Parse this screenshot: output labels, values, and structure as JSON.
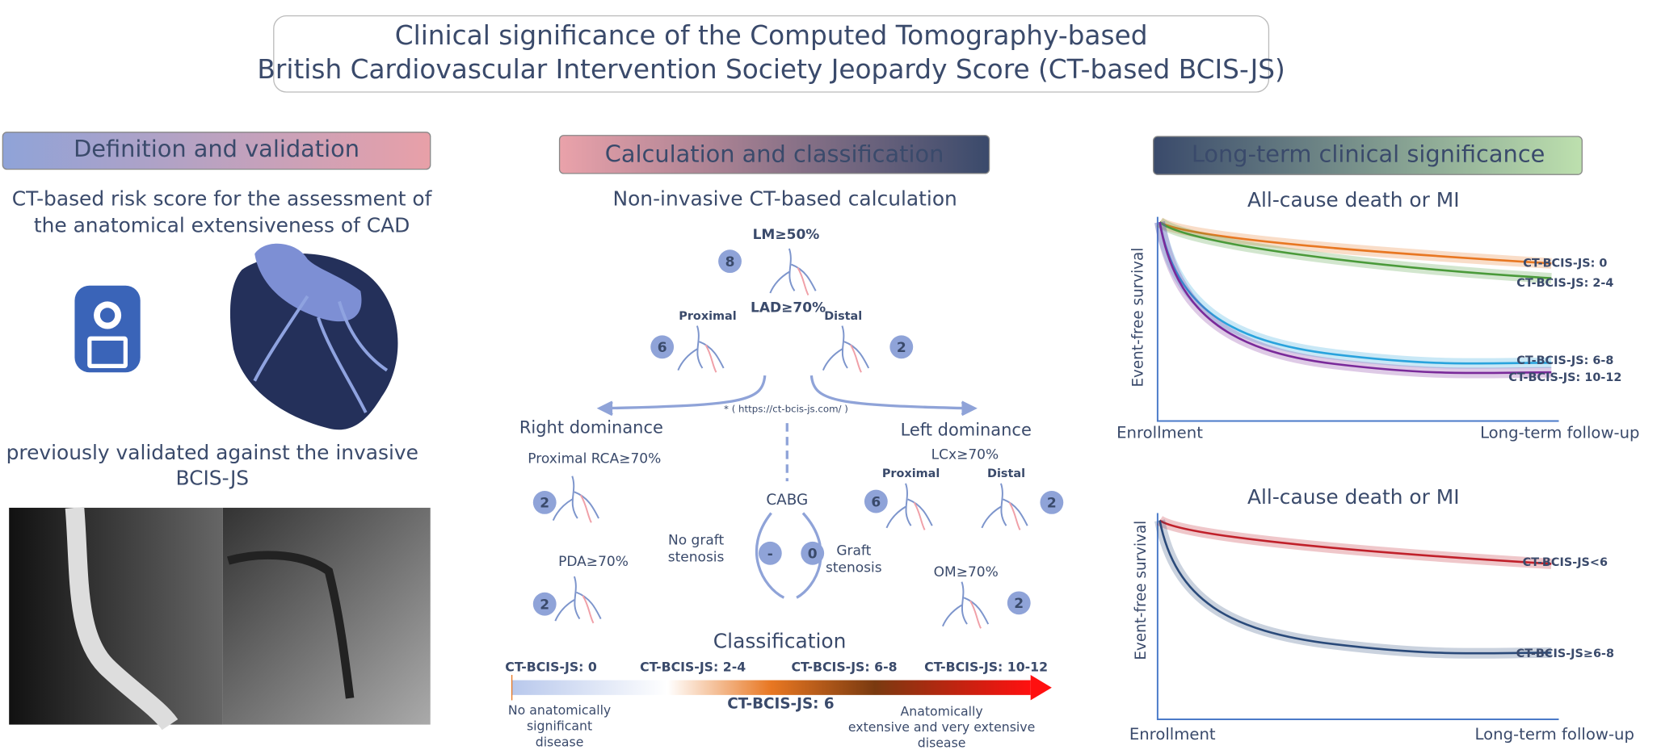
{
  "header": {
    "title": [
      "Clinical significance of the Computed Tomography-based",
      "British Cardiovascular Intervention Society Jeopardy Score (CT-based BCIS-JS)"
    ]
  },
  "left_panel": {
    "heading": "Definition and validation",
    "description": [
      "CT-based risk score for the assessment of",
      "the anatomical extensiveness of CAD"
    ],
    "validation": [
      "previously validated against the invasive",
      "BCIS-JS"
    ]
  },
  "middle_panel": {
    "heading": "Calculation and classification",
    "subheading": "Non-invasive CT-based calculation",
    "lm": {
      "label": "LM≥50%",
      "score": 8
    },
    "lad": {
      "label": "LAD≥70%",
      "proximal": {
        "label": "Proximal",
        "score": 6
      },
      "distal": {
        "label": "Distal",
        "score": 2
      }
    },
    "url": "* ( https://ct-bcis-js.com/ )",
    "right_dominance": {
      "heading": "Right dominance",
      "rca": {
        "label": "Proximal RCA≥70%",
        "score": 2
      },
      "pda": {
        "label": "PDA≥70%",
        "score": 2
      }
    },
    "cabg": {
      "label": "CABG",
      "no_graft_stenosis": {
        "label": [
          "No graft",
          "stenosis"
        ],
        "score": "-"
      },
      "graft_stenosis": {
        "label": [
          "Graft",
          "stenosis"
        ],
        "score": 0
      }
    },
    "left_dominance": {
      "heading": "Left dominance",
      "lcx": {
        "label": "LCx≥70%",
        "proximal": {
          "label": "Proximal",
          "score": 6
        },
        "distal": {
          "label": "Distal",
          "score": 2
        }
      },
      "om": {
        "label": "OM≥70%",
        "score": 2
      }
    },
    "classification": {
      "title": "Classification",
      "groups": [
        {
          "label": "CT-BCIS-JS: 0",
          "color": "#e87722"
        },
        {
          "label": "CT-BCIS-JS: 2-4",
          "color": "#5a9a30"
        },
        {
          "label": "CT-BCIS-JS: 6-8",
          "color": "#29a3dd"
        },
        {
          "label": "CT-BCIS-JS: 10-12",
          "color": "#7a2a9a"
        }
      ],
      "threshold": "CT-BCIS-JS: 6",
      "low_note": [
        "No anatomically",
        "significant",
        "disease"
      ],
      "high_note": [
        "Anatomically",
        "extensive and very extensive",
        "disease"
      ]
    }
  },
  "right_panel": {
    "heading": "Long-term clinical significance",
    "plots": [
      {
        "title": "All-cause death or MI",
        "y_label": "Event-free survival",
        "x_labels": [
          "Enrollment",
          "Long-term follow-up"
        ],
        "curves": [
          {
            "label": "CT-BCIS-JS: 0",
            "color": "#e87722"
          },
          {
            "label": "CT-BCIS-JS: 2-4",
            "color": "#4a9a3a"
          },
          {
            "label": "CT-BCIS-JS: 6-8",
            "color": "#29a3dd"
          },
          {
            "label": "CT-BCIS-JS: 10-12",
            "color": "#7a2a9a"
          }
        ]
      },
      {
        "title": "All-cause death or MI",
        "y_label": "Event-free survival",
        "x_labels": [
          "Enrollment",
          "Long-term follow-up"
        ],
        "curves": [
          {
            "label": "CT-BCIS-JS<6",
            "color": "#c0202a"
          },
          {
            "label": "CT-BCIS-JS≥6-8",
            "color": "#2a4a7a"
          }
        ]
      }
    ]
  }
}
